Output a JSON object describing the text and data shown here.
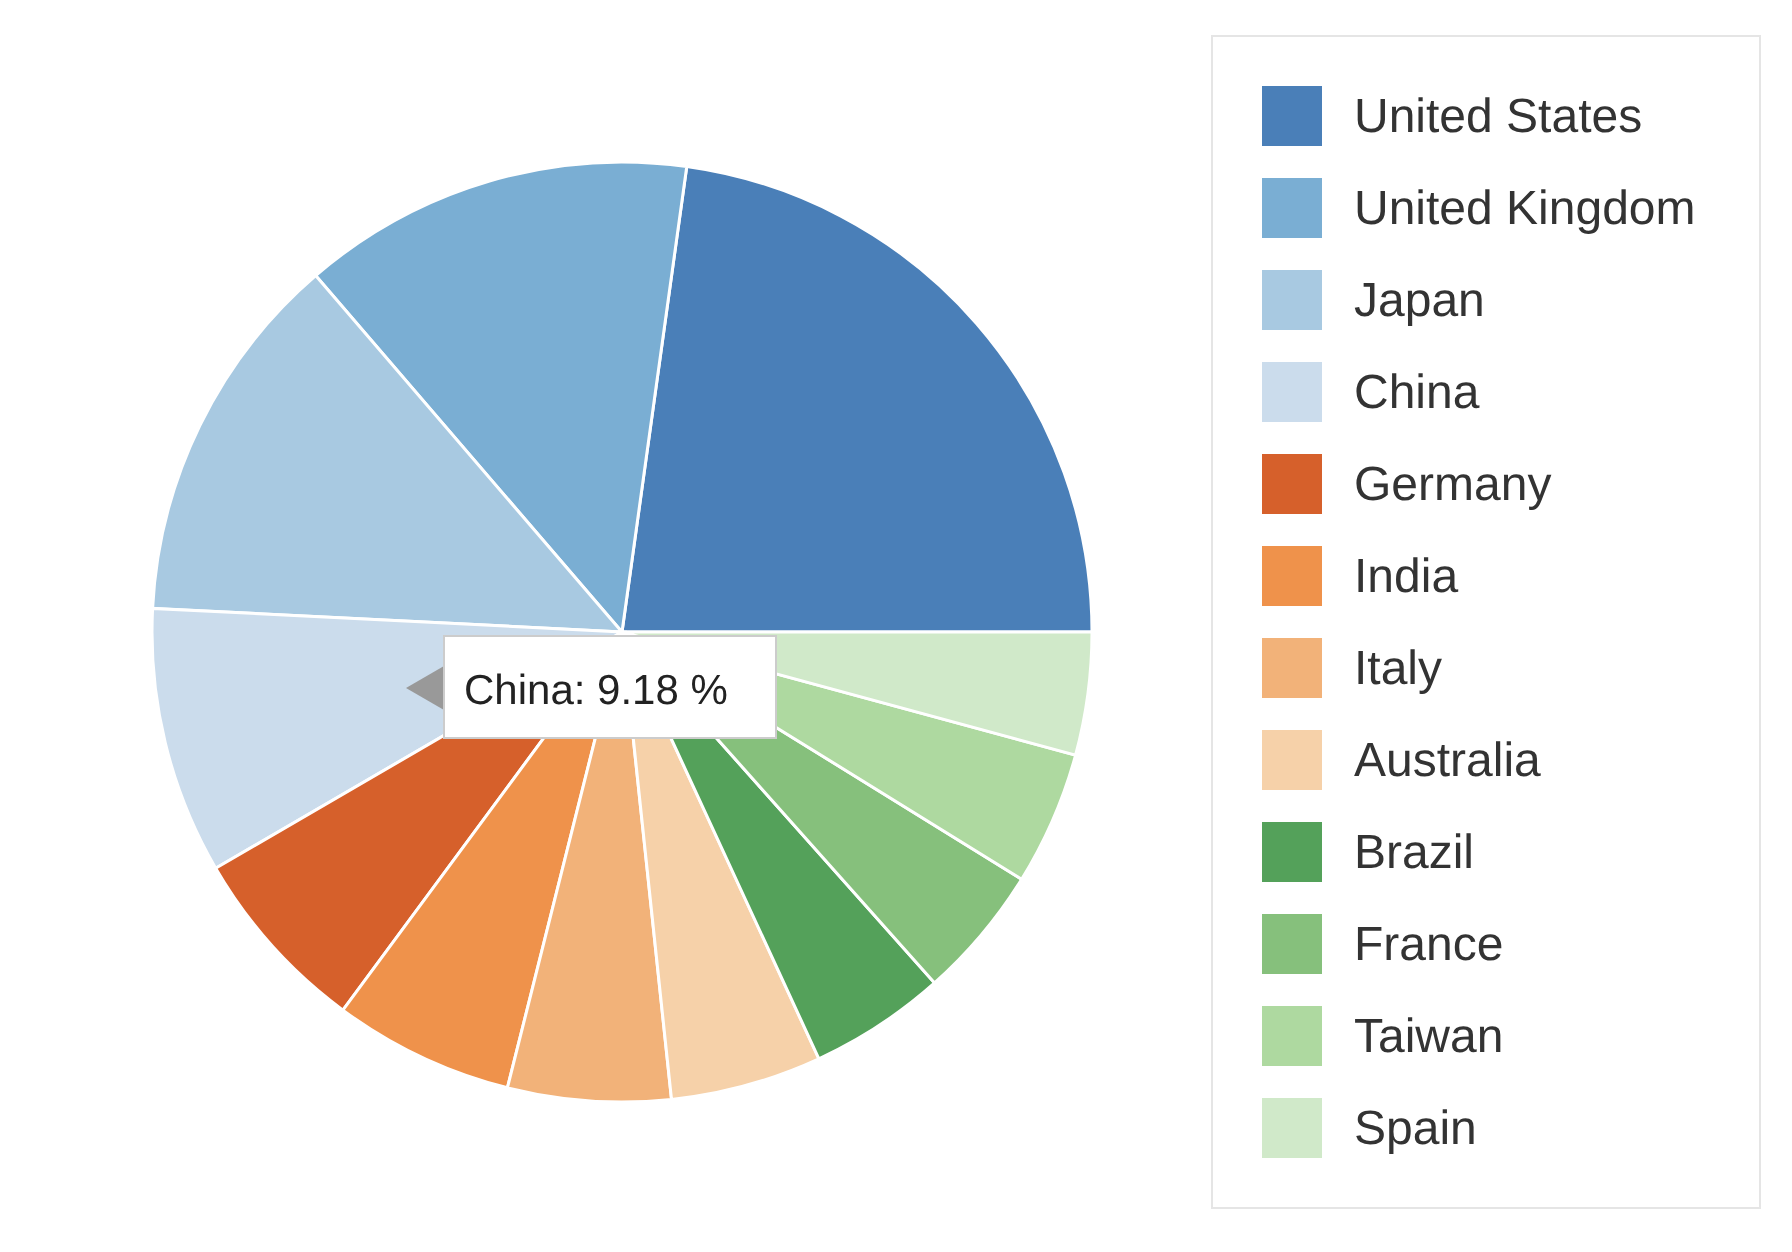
{
  "chart_data": {
    "type": "pie",
    "categories": [
      "United States",
      "United Kingdom",
      "Japan",
      "China",
      "Germany",
      "India",
      "Italy",
      "Australia",
      "Brazil",
      "France",
      "Taiwan",
      "Spain"
    ],
    "values": [
      22.8,
      13.5,
      12.9,
      9.18,
      6.5,
      6.2,
      5.6,
      5.2,
      4.7,
      4.6,
      4.6,
      4.22
    ],
    "colors": [
      "#4a7fb8",
      "#7aaed3",
      "#a8c9e1",
      "#cbdcec",
      "#d6602b",
      "#ef924b",
      "#f2b279",
      "#f6d1a9",
      "#54a15a",
      "#86c07c",
      "#aed9a0",
      "#d0e9c9"
    ],
    "legend": "right",
    "annotations": [
      "China: 9.18 %"
    ]
  }
}
